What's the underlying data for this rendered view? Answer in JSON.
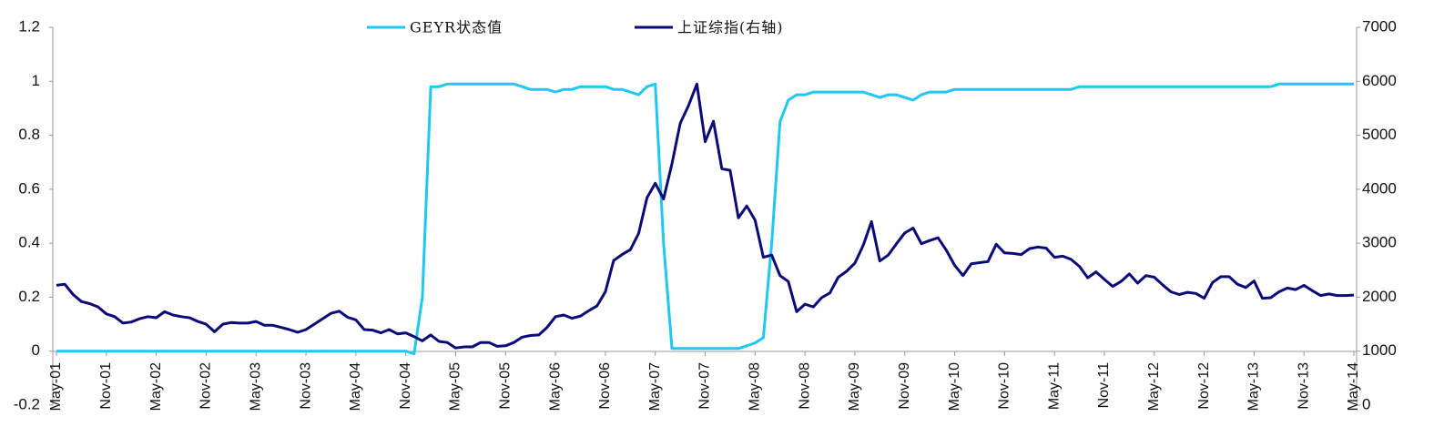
{
  "chart_data": {
    "type": "line",
    "categories": [
      "May-01",
      null,
      null,
      null,
      null,
      null,
      "Nov-01",
      null,
      null,
      null,
      null,
      null,
      "May-02",
      null,
      null,
      null,
      null,
      null,
      "Nov-02",
      null,
      null,
      null,
      null,
      null,
      "May-03",
      null,
      null,
      null,
      null,
      null,
      "Nov-03",
      null,
      null,
      null,
      null,
      null,
      "May-04",
      null,
      null,
      null,
      null,
      null,
      "Nov-04",
      null,
      null,
      null,
      null,
      null,
      "May-05",
      null,
      null,
      null,
      null,
      null,
      "Nov-05",
      null,
      null,
      null,
      null,
      null,
      "May-06",
      null,
      null,
      null,
      null,
      null,
      "Nov-06",
      null,
      null,
      null,
      null,
      null,
      "May-07",
      null,
      null,
      null,
      null,
      null,
      "Nov-07",
      null,
      null,
      null,
      null,
      null,
      "May-08",
      null,
      null,
      null,
      null,
      null,
      "Nov-08",
      null,
      null,
      null,
      null,
      null,
      "May-09",
      null,
      null,
      null,
      null,
      null,
      "Nov-09",
      null,
      null,
      null,
      null,
      null,
      "May-10",
      null,
      null,
      null,
      null,
      null,
      "Nov-10",
      null,
      null,
      null,
      null,
      null,
      "May-11",
      null,
      null,
      null,
      null,
      null,
      "Nov-11",
      null,
      null,
      null,
      null,
      null,
      "May-12",
      null,
      null,
      null,
      null,
      null,
      "Nov-12",
      null,
      null,
      null,
      null,
      null,
      "May-13",
      null,
      null,
      null,
      null,
      null,
      "Nov-13",
      null,
      null,
      null,
      null,
      null,
      "May-14"
    ],
    "series": [
      {
        "name": "GEYR状态值",
        "color": "#1ec8f0",
        "values": [
          0,
          0,
          0,
          0,
          0,
          0,
          0,
          0,
          0,
          0,
          0,
          0,
          0,
          0,
          0,
          0,
          0,
          0,
          0,
          0,
          0,
          0,
          0,
          0,
          0,
          0,
          0,
          0,
          0,
          0,
          0,
          0,
          0,
          0,
          0,
          0,
          0,
          0,
          0,
          0,
          0,
          0,
          0,
          -0.01,
          0.2,
          0.98,
          0.98,
          0.99,
          0.99,
          0.99,
          0.99,
          0.99,
          0.99,
          0.99,
          0.99,
          0.99,
          0.98,
          0.97,
          0.97,
          0.97,
          0.96,
          0.97,
          0.97,
          0.98,
          0.98,
          0.98,
          0.98,
          0.97,
          0.97,
          0.96,
          0.95,
          0.98,
          0.99,
          0.4,
          0.01,
          0.01,
          0.01,
          0.01,
          0.01,
          0.01,
          0.01,
          0.01,
          0.01,
          0.02,
          0.03,
          0.05,
          0.4,
          0.85,
          0.93,
          0.95,
          0.95,
          0.96,
          0.96,
          0.96,
          0.96,
          0.96,
          0.96,
          0.96,
          0.95,
          0.94,
          0.95,
          0.95,
          0.94,
          0.93,
          0.95,
          0.96,
          0.96,
          0.96,
          0.97,
          0.97,
          0.97,
          0.97,
          0.97,
          0.97,
          0.97,
          0.97,
          0.97,
          0.97,
          0.97,
          0.97,
          0.97,
          0.97,
          0.97,
          0.98,
          0.98,
          0.98,
          0.98,
          0.98,
          0.98,
          0.98,
          0.98,
          0.98,
          0.98,
          0.98,
          0.98,
          0.98,
          0.98,
          0.98,
          0.98,
          0.98,
          0.98,
          0.98,
          0.98,
          0.98,
          0.98,
          0.98,
          0.98,
          0.99,
          0.99,
          0.99,
          0.99,
          0.99,
          0.99,
          0.99,
          0.99,
          0.99,
          0.99
        ]
      },
      {
        "name": "上证综指(右轴)",
        "color": "#0a0a78",
        "axis": "y2",
        "values": [
          2220,
          2240,
          2050,
          1920,
          1880,
          1820,
          1690,
          1640,
          1520,
          1540,
          1600,
          1640,
          1620,
          1730,
          1670,
          1640,
          1620,
          1550,
          1500,
          1360,
          1500,
          1530,
          1520,
          1520,
          1550,
          1480,
          1480,
          1440,
          1400,
          1350,
          1400,
          1500,
          1600,
          1700,
          1740,
          1630,
          1580,
          1400,
          1390,
          1340,
          1400,
          1320,
          1340,
          1270,
          1190,
          1300,
          1180,
          1160,
          1060,
          1080,
          1080,
          1160,
          1160,
          1090,
          1100,
          1160,
          1260,
          1290,
          1300,
          1440,
          1640,
          1670,
          1610,
          1650,
          1750,
          1840,
          2100,
          2680,
          2790,
          2880,
          3180,
          3840,
          4110,
          3820,
          4470,
          5220,
          5550,
          5950,
          4880,
          5260,
          4380,
          4350,
          3470,
          3690,
          3430,
          2740,
          2780,
          2400,
          2290,
          1730,
          1870,
          1820,
          1990,
          2080,
          2370,
          2480,
          2630,
          2960,
          3400,
          2670,
          2780,
          2990,
          3190,
          3280,
          2990,
          3050,
          3100,
          2870,
          2590,
          2400,
          2620,
          2640,
          2660,
          2980,
          2820,
          2810,
          2790,
          2900,
          2930,
          2910,
          2740,
          2760,
          2700,
          2570,
          2360,
          2470,
          2330,
          2200,
          2290,
          2430,
          2260,
          2400,
          2370,
          2230,
          2100,
          2050,
          2090,
          2070,
          1980,
          2270,
          2380,
          2380,
          2240,
          2180,
          2300,
          1980,
          1990,
          2100,
          2170,
          2140,
          2220,
          2120,
          2030,
          2060,
          2030,
          2030,
          2040
        ]
      }
    ],
    "ylim": [
      -0.2,
      1.2
    ],
    "yticks": [
      -0.2,
      0,
      0.2,
      0.4,
      0.6,
      0.8,
      1,
      1.2
    ],
    "y2lim": [
      0,
      7000
    ],
    "y2ticks": [
      0,
      1000,
      2000,
      3000,
      4000,
      5000,
      6000,
      7000
    ],
    "legend": "top",
    "grid": false
  }
}
